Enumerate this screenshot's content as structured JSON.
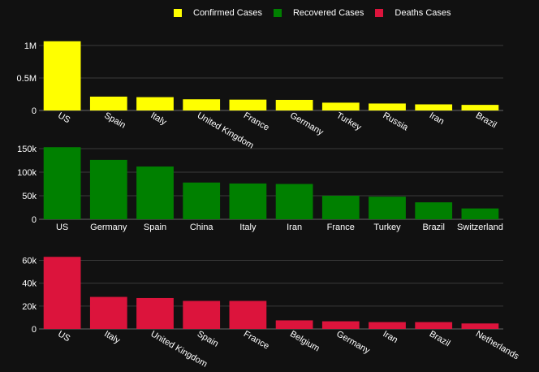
{
  "legend": [
    {
      "label": "Confirmed Cases",
      "color": "#ffff00"
    },
    {
      "label": "Recovered Cases",
      "color": "#008000"
    },
    {
      "label": "Deaths Cases",
      "color": "#dc143c"
    }
  ],
  "chart_data": [
    {
      "type": "bar",
      "name": "Confirmed Cases",
      "color": "#ffff00",
      "categories": [
        "US",
        "Spain",
        "Italy",
        "United Kingdom",
        "France",
        "Germany",
        "Turkey",
        "Russia",
        "Iran",
        "Brazil"
      ],
      "values": [
        1065000,
        213000,
        205000,
        172000,
        167000,
        163000,
        120000,
        107000,
        94000,
        86000
      ],
      "ylim": [
        0,
        1200000
      ],
      "yticks": [
        0,
        500000,
        1000000
      ],
      "ytick_labels": [
        "0",
        "0.5M",
        "1M"
      ],
      "xtick_rotate": true,
      "grid": true
    },
    {
      "type": "bar",
      "name": "Recovered Cases",
      "color": "#008000",
      "categories": [
        "US",
        "Germany",
        "Spain",
        "China",
        "Italy",
        "Iran",
        "France",
        "Turkey",
        "Brazil",
        "Switzerland"
      ],
      "values": [
        153000,
        126000,
        112000,
        78000,
        76000,
        75000,
        50000,
        48000,
        36000,
        23000
      ],
      "ylim": [
        0,
        162000
      ],
      "yticks": [
        0,
        50000,
        100000,
        150000
      ],
      "ytick_labels": [
        "0",
        "50k",
        "100k",
        "150k"
      ],
      "xtick_rotate": false,
      "grid": true
    },
    {
      "type": "bar",
      "name": "Deaths Cases",
      "color": "#dc143c",
      "categories": [
        "US",
        "Italy",
        "United Kingdom",
        "Spain",
        "France",
        "Belgium",
        "Germany",
        "Iran",
        "Brazil",
        "Netherlands"
      ],
      "values": [
        63000,
        28000,
        27000,
        24500,
        24500,
        7500,
        6700,
        6000,
        6000,
        4800
      ],
      "ylim": [
        0,
        66000
      ],
      "yticks": [
        0,
        20000,
        40000,
        60000
      ],
      "ytick_labels": [
        "0",
        "20k",
        "40k",
        "60k"
      ],
      "xtick_rotate": true,
      "grid": true
    }
  ]
}
